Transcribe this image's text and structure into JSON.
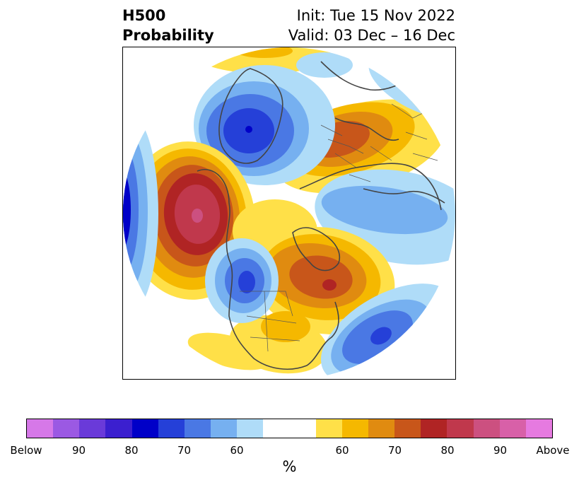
{
  "title": {
    "left_line1": "H500",
    "left_line2": "Probability",
    "right_line1": "Init: Tue 15 Nov 2022",
    "right_line2": "Valid: 03 Dec – 16 Dec"
  },
  "colorbar": {
    "unit": "%",
    "tick_labels": [
      "Below",
      "90",
      "80",
      "70",
      "60",
      "60",
      "70",
      "80",
      "90",
      "Above"
    ],
    "below_colors": [
      "#d678e8",
      "#9b59e3",
      "#6a3ad9",
      "#3b1fcf",
      "#0000c8",
      "#2540d8",
      "#4a78e4",
      "#76b0f0",
      "#afdcf8"
    ],
    "neutral_color": "#ffffff",
    "above_colors": [
      "#ffe048",
      "#f5b800",
      "#e08b10",
      "#c8561a",
      "#b02424",
      "#c0384c",
      "#cc5080",
      "#d860a8",
      "#e67ae0"
    ]
  },
  "map": {
    "projection": "polar stereographic north",
    "anomaly_centers": [
      {
        "name": "eastern-pacific-ridge",
        "sign": "above"
      },
      {
        "name": "greenland-trough",
        "sign": "below"
      },
      {
        "name": "western-russia-ridge",
        "sign": "above"
      },
      {
        "name": "siberia-trough",
        "sign": "below"
      },
      {
        "name": "north-pacific-trough",
        "sign": "below"
      },
      {
        "name": "western-us-trough",
        "sign": "below"
      },
      {
        "name": "eastern-canada-ridge",
        "sign": "above"
      },
      {
        "name": "central-atlantic-trough",
        "sign": "below"
      }
    ]
  }
}
